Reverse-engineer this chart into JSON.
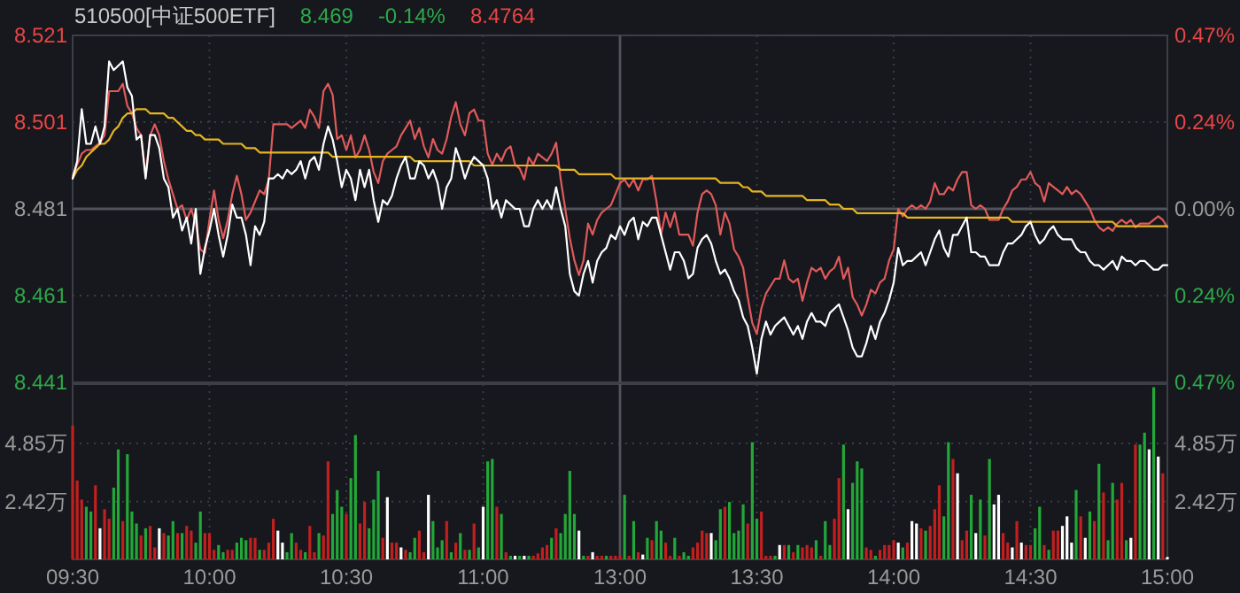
{
  "chart_data": [
    {
      "type": "line",
      "title": "510500[中证500ETF]",
      "annotations": [
        "8.469",
        "-0.14%",
        "8.4764"
      ],
      "categories": [
        null,
        null,
        null,
        null,
        null,
        null,
        null,
        null,
        null,
        null,
        null,
        null,
        null,
        null,
        null,
        null,
        null,
        null,
        null,
        null,
        null,
        null,
        null,
        null,
        null,
        null,
        null,
        null,
        null,
        null,
        null,
        null,
        null,
        null,
        null,
        null,
        null,
        null,
        null,
        null,
        null,
        null,
        null,
        null,
        null,
        null,
        null,
        null,
        null,
        null,
        null,
        null,
        null,
        null,
        null,
        null,
        null,
        null,
        null,
        null,
        null,
        null,
        null,
        null,
        null,
        null,
        null,
        null,
        null,
        null,
        null,
        null,
        null,
        null,
        null,
        null,
        null,
        null,
        null,
        null,
        null,
        null,
        null,
        null,
        null,
        null,
        null,
        null,
        null,
        null,
        null,
        null,
        null,
        null,
        null,
        null,
        null,
        null,
        null,
        null,
        null,
        null,
        null,
        null,
        null,
        null,
        null,
        null,
        null,
        null,
        null,
        null,
        null,
        null,
        null,
        null,
        null,
        null,
        null,
        null,
        null,
        null,
        null,
        null,
        null,
        null,
        null,
        null,
        null,
        null,
        null,
        null,
        null,
        null,
        null,
        null,
        null,
        null,
        null,
        null,
        null,
        null,
        null,
        null,
        null,
        null,
        null,
        null,
        null,
        null,
        null,
        null,
        null,
        null,
        null,
        null,
        null,
        null,
        null,
        null,
        null,
        null,
        null,
        null,
        null,
        null,
        null,
        null,
        null,
        null,
        null,
        null,
        null,
        null,
        null,
        null,
        null,
        null,
        null,
        null,
        null,
        null,
        null,
        null,
        null,
        null,
        null,
        null,
        null,
        null,
        null,
        null,
        null,
        null,
        null,
        null,
        null,
        null,
        null,
        null,
        null,
        null,
        null,
        null,
        null,
        null,
        null,
        null,
        null,
        null,
        null,
        null,
        null,
        null,
        null,
        null,
        null,
        null,
        null,
        null,
        null,
        null,
        null,
        null,
        null,
        null,
        null,
        null,
        null,
        null,
        null,
        null,
        null,
        null,
        null,
        null,
        null,
        null,
        null,
        null,
        null
      ],
      "ylim": [
        8.441,
        8.521
      ],
      "yticks": [
        8.441,
        8.461,
        8.481,
        8.501,
        8.521
      ],
      "y2lim": [
        -0.4716,
        0.4716
      ],
      "y2ticks": [
        {
          "value": -0.4716,
          "label": "0.47%"
        },
        {
          "value": -0.2358,
          "label": "0.24%"
        },
        {
          "value": 0,
          "label": "0.00%"
        },
        {
          "value": 0.2358,
          "label": "0.24%"
        },
        {
          "value": 0.4716,
          "label": "0.47%"
        }
      ],
      "tick_labels": "y",
      "grid": true,
      "series": [
        {
          "color": "#e05a5a",
          "axis": "y2",
          "values": [
            0.09,
            0.12,
            0.15,
            0.16,
            0.16,
            0.17,
            0.18,
            0.2,
            0.32,
            0.32,
            0.32,
            0.34,
            0.28,
            0.26,
            0.22,
            0.2,
            0.09,
            0.2,
            0.23,
            0.2,
            0.13,
            0.08,
            0.04,
            0,
            0.01,
            -0.03,
            0,
            -0.04,
            -0.11,
            -0.12,
            -0.03,
            0.05,
            -0.03,
            -0.08,
            -0.03,
            0.04,
            0.09,
            0.04,
            -0.03,
            -0.01,
            0.02,
            0.05,
            0.04,
            0.08,
            0.23,
            0.23,
            0.23,
            0.23,
            0.22,
            0.23,
            0.24,
            0.22,
            0.27,
            0.25,
            0.22,
            0.32,
            0.34,
            0.31,
            0.19,
            0.2,
            0.16,
            0.2,
            0.14,
            0.16,
            0.2,
            0.16,
            0.1,
            0.07,
            0.13,
            0.15,
            0.16,
            0.17,
            0.2,
            0.22,
            0.24,
            0.19,
            0.22,
            0.17,
            0.14,
            0.19,
            0.16,
            0.15,
            0.19,
            0.25,
            0.29,
            0.23,
            0.2,
            0.26,
            0.27,
            0.24,
            0.24,
            0.15,
            0.12,
            0.15,
            0.13,
            0.16,
            0.17,
            0.12,
            0.11,
            0.08,
            0.14,
            0.12,
            0.15,
            0.14,
            0.13,
            0.15,
            0.18,
            0.08,
            0,
            -0.08,
            -0.14,
            -0.18,
            -0.14,
            -0.04,
            -0.07,
            -0.03,
            -0.01,
            0,
            0.01,
            0.04,
            0.07,
            0.08,
            0.06,
            0.08,
            0.05,
            0.08,
            0.08,
            0.09,
            0.02,
            -0.07,
            -0.01,
            -0.05,
            -0.01,
            -0.07,
            -0.07,
            -0.07,
            -0.1,
            -0.01,
            0.04,
            0.05,
            0.04,
            0.01,
            -0.07,
            -0.01,
            -0.04,
            -0.11,
            -0.13,
            -0.16,
            -0.24,
            -0.31,
            -0.34,
            -0.27,
            -0.23,
            -0.21,
            -0.19,
            -0.19,
            -0.14,
            -0.19,
            -0.2,
            -0.19,
            -0.25,
            -0.2,
            -0.16,
            -0.17,
            -0.16,
            -0.19,
            -0.17,
            -0.16,
            -0.13,
            -0.19,
            -0.16,
            -0.24,
            -0.26,
            -0.29,
            -0.26,
            -0.22,
            -0.23,
            -0.2,
            -0.19,
            -0.14,
            -0.11,
            0,
            -0.02,
            0,
            0.01,
            0,
            0.01,
            0,
            0.02,
            0.07,
            0.04,
            0.04,
            0.06,
            0.05,
            0.08,
            0.1,
            0.1,
            0.01,
            0,
            0.01,
            0,
            -0.03,
            -0.03,
            -0.03,
            0,
            0.02,
            0.05,
            0.06,
            0.08,
            0.08,
            0.1,
            0.07,
            0.06,
            0.02,
            0.07,
            0.06,
            0.05,
            0.04,
            0.06,
            0.04,
            0.05,
            0.04,
            0.02,
            0,
            -0.03,
            -0.05,
            -0.06,
            -0.05,
            -0.06,
            -0.04,
            -0.03,
            -0.04,
            -0.03,
            -0.05,
            -0.04,
            -0.04,
            -0.04,
            -0.03,
            -0.02,
            -0.03,
            -0.05
          ]
        },
        {
          "color": "#e6b422",
          "values": [
            8.488,
            8.49,
            8.491,
            8.493,
            8.494,
            8.495,
            8.496,
            8.496,
            8.497,
            8.499,
            8.5,
            8.502,
            8.503,
            8.503,
            8.504,
            8.504,
            8.504,
            8.503,
            8.503,
            8.503,
            8.503,
            8.502,
            8.502,
            8.501,
            8.5,
            8.499,
            8.499,
            8.498,
            8.498,
            8.497,
            8.497,
            8.497,
            8.497,
            8.496,
            8.496,
            8.496,
            8.496,
            8.496,
            8.495,
            8.495,
            8.495,
            8.494,
            8.494,
            8.494,
            8.494,
            8.494,
            8.494,
            8.494,
            8.494,
            8.494,
            8.494,
            8.494,
            8.494,
            8.494,
            8.494,
            8.494,
            8.494,
            8.493,
            8.493,
            8.493,
            8.493,
            8.493,
            8.493,
            8.493,
            8.493,
            8.493,
            8.493,
            8.493,
            8.493,
            8.493,
            8.493,
            8.493,
            8.493,
            8.493,
            8.493,
            8.492,
            8.492,
            8.492,
            8.492,
            8.492,
            8.492,
            8.492,
            8.492,
            8.492,
            8.492,
            8.492,
            8.492,
            8.492,
            8.491,
            8.491,
            8.491,
            8.491,
            8.491,
            8.491,
            8.491,
            8.491,
            8.491,
            8.491,
            8.491,
            8.491,
            8.491,
            8.491,
            8.491,
            8.491,
            8.491,
            8.491,
            8.491,
            8.49,
            8.49,
            8.49,
            8.49,
            8.489,
            8.489,
            8.489,
            8.489,
            8.489,
            8.489,
            8.489,
            8.489,
            8.488,
            8.488,
            8.488,
            8.488,
            8.488,
            8.488,
            8.488,
            8.488,
            8.488,
            8.488,
            8.488,
            8.488,
            8.488,
            8.488,
            8.488,
            8.488,
            8.488,
            8.488,
            8.488,
            8.488,
            8.488,
            8.488,
            8.488,
            8.487,
            8.487,
            8.487,
            8.487,
            8.487,
            8.486,
            8.486,
            8.485,
            8.485,
            8.485,
            8.484,
            8.484,
            8.484,
            8.484,
            8.484,
            8.484,
            8.484,
            8.484,
            8.484,
            8.483,
            8.483,
            8.483,
            8.483,
            8.483,
            8.482,
            8.482,
            8.482,
            8.481,
            8.481,
            8.481,
            8.48,
            8.48,
            8.48,
            8.48,
            8.48,
            8.48,
            8.48,
            8.48,
            8.48,
            8.48,
            8.48,
            8.479,
            8.479,
            8.479,
            8.479,
            8.479,
            8.479,
            8.479,
            8.479,
            8.479,
            8.479,
            8.479,
            8.479,
            8.479,
            8.479,
            8.479,
            8.479,
            8.479,
            8.479,
            8.479,
            8.479,
            8.479,
            8.479,
            8.479,
            8.478,
            8.478,
            8.478,
            8.478,
            8.478,
            8.478,
            8.478,
            8.478,
            8.478,
            8.478,
            8.478,
            8.478,
            8.478,
            8.478,
            8.478,
            8.478,
            8.478,
            8.478,
            8.478,
            8.478,
            8.478,
            8.478,
            8.478,
            8.477,
            8.477,
            8.477,
            8.477,
            8.477,
            8.477,
            8.477,
            8.477,
            8.477,
            8.477,
            8.477,
            8.477
          ]
        },
        {
          "color": "#ffffff",
          "values": [
            8.488,
            8.492,
            8.504,
            8.496,
            8.496,
            8.5,
            8.496,
            8.5,
            8.515,
            8.513,
            8.514,
            8.515,
            8.509,
            8.507,
            8.497,
            8.498,
            8.488,
            8.498,
            8.498,
            8.495,
            8.488,
            8.486,
            8.479,
            8.481,
            8.476,
            8.479,
            8.473,
            8.481,
            8.466,
            8.472,
            8.476,
            8.481,
            8.475,
            8.47,
            8.475,
            8.482,
            8.479,
            8.479,
            8.475,
            8.468,
            8.477,
            8.475,
            8.478,
            8.488,
            8.488,
            8.489,
            8.488,
            8.49,
            8.489,
            8.49,
            8.492,
            8.488,
            8.492,
            8.493,
            8.49,
            8.496,
            8.5,
            8.497,
            8.492,
            8.486,
            8.49,
            8.488,
            8.483,
            8.49,
            8.486,
            8.49,
            8.483,
            8.478,
            8.483,
            8.482,
            8.484,
            8.488,
            8.491,
            8.493,
            8.488,
            8.488,
            8.492,
            8.491,
            8.488,
            8.49,
            8.487,
            8.481,
            8.486,
            8.488,
            8.495,
            8.492,
            8.488,
            8.491,
            8.493,
            8.492,
            8.491,
            8.488,
            8.481,
            8.483,
            8.479,
            8.483,
            8.482,
            8.481,
            8.481,
            8.477,
            8.477,
            8.481,
            8.483,
            8.481,
            8.483,
            8.481,
            8.486,
            8.481,
            8.477,
            8.466,
            8.462,
            8.461,
            8.466,
            8.469,
            8.464,
            8.469,
            8.471,
            8.472,
            8.475,
            8.474,
            8.477,
            8.475,
            8.478,
            8.479,
            8.474,
            8.478,
            8.477,
            8.479,
            8.479,
            8.475,
            8.471,
            8.467,
            8.471,
            8.471,
            8.469,
            8.465,
            8.466,
            8.472,
            8.474,
            8.475,
            8.473,
            8.469,
            8.466,
            8.467,
            8.465,
            8.462,
            8.46,
            8.456,
            8.454,
            8.449,
            8.443,
            8.451,
            8.455,
            8.452,
            8.454,
            8.455,
            8.456,
            8.454,
            8.452,
            8.454,
            8.451,
            8.455,
            8.457,
            8.455,
            8.455,
            8.454,
            8.457,
            8.458,
            8.459,
            8.456,
            8.453,
            8.449,
            8.447,
            8.447,
            8.45,
            8.454,
            8.451,
            8.455,
            8.457,
            8.46,
            8.464,
            8.472,
            8.468,
            8.469,
            8.469,
            8.47,
            8.471,
            8.468,
            8.471,
            8.474,
            8.476,
            8.472,
            8.47,
            8.475,
            8.475,
            8.477,
            8.479,
            8.471,
            8.471,
            8.47,
            8.47,
            8.468,
            8.468,
            8.468,
            8.471,
            8.473,
            8.473,
            8.474,
            8.475,
            8.477,
            8.478,
            8.475,
            8.473,
            8.474,
            8.476,
            8.477,
            8.475,
            8.474,
            8.474,
            8.474,
            8.472,
            8.471,
            8.471,
            8.469,
            8.468,
            8.468,
            8.467,
            8.468,
            8.469,
            8.467,
            8.47,
            8.469,
            8.469,
            8.468,
            8.469,
            8.469,
            8.468,
            8.467,
            8.467,
            8.468,
            8.468
          ]
        }
      ]
    },
    {
      "type": "bar",
      "categories": [
        "09:30",
        null,
        null,
        null,
        null,
        null,
        null,
        null,
        null,
        null,
        null,
        null,
        null,
        null,
        null,
        null,
        null,
        null,
        null,
        null,
        null,
        null,
        null,
        null,
        null,
        null,
        null,
        null,
        null,
        null,
        "10:00",
        null,
        null,
        null,
        null,
        null,
        null,
        null,
        null,
        null,
        null,
        null,
        null,
        null,
        null,
        null,
        null,
        null,
        null,
        null,
        null,
        null,
        null,
        null,
        null,
        null,
        null,
        null,
        null,
        null,
        "10:30",
        null,
        null,
        null,
        null,
        null,
        null,
        null,
        null,
        null,
        null,
        null,
        null,
        null,
        null,
        null,
        null,
        null,
        null,
        null,
        null,
        null,
        null,
        null,
        null,
        null,
        null,
        null,
        null,
        null,
        "11:00",
        null,
        null,
        null,
        null,
        null,
        null,
        null,
        null,
        null,
        null,
        null,
        null,
        null,
        null,
        null,
        null,
        null,
        null,
        null,
        null,
        null,
        null,
        null,
        null,
        null,
        null,
        null,
        null,
        null,
        "13:00",
        null,
        null,
        null,
        null,
        null,
        null,
        null,
        null,
        null,
        null,
        null,
        null,
        null,
        null,
        null,
        null,
        null,
        null,
        null,
        null,
        null,
        null,
        null,
        null,
        null,
        null,
        null,
        null,
        null,
        "13:30",
        null,
        null,
        null,
        null,
        null,
        null,
        null,
        null,
        null,
        null,
        null,
        null,
        null,
        null,
        null,
        null,
        null,
        null,
        null,
        null,
        null,
        null,
        null,
        null,
        null,
        null,
        null,
        null,
        null,
        "14:00",
        null,
        null,
        null,
        null,
        null,
        null,
        null,
        null,
        null,
        null,
        null,
        null,
        null,
        null,
        null,
        null,
        null,
        null,
        null,
        null,
        null,
        null,
        null,
        null,
        null,
        null,
        null,
        null,
        null,
        "14:30",
        null,
        null,
        null,
        null,
        null,
        null,
        null,
        null,
        null,
        null,
        null,
        null,
        null,
        null,
        null,
        null,
        null,
        null,
        null,
        null,
        null,
        null,
        null,
        null,
        null,
        null,
        null,
        null,
        null,
        "15:00"
      ],
      "ylim": [
        0,
        7.33
      ],
      "yticks": [
        {
          "value": 2.42,
          "label": "2.42万"
        },
        {
          "value": 4.85,
          "label": "4.85万"
        }
      ],
      "y2lim": [
        0,
        7.33
      ],
      "y2ticks": [
        {
          "value": 2.42,
          "label": "2.42万"
        },
        {
          "value": 4.85,
          "label": "4.85万"
        }
      ],
      "grid": true,
      "values": [
        5.6,
        3.3,
        2.5,
        2.2,
        2.0,
        3.1,
        1.3,
        2.1,
        1.7,
        3.0,
        4.6,
        1.6,
        4.4,
        2.0,
        1.5,
        1.0,
        1.3,
        1.4,
        0.5,
        1.3,
        1.1,
        1.0,
        1.6,
        1.1,
        1.1,
        1.4,
        1.2,
        0.7,
        2.0,
        1.1,
        1.1,
        0.4,
        0.6,
        0.3,
        0.4,
        0.4,
        0.7,
        0.9,
        0.8,
        0.9,
        0.9,
        0.4,
        0.4,
        0.7,
        1.7,
        1.2,
        0.7,
        0.3,
        1.1,
        0.7,
        0.4,
        0.3,
        1.4,
        0.3,
        1.1,
        1.0,
        4.1,
        1.9,
        2.9,
        2.2,
        1.9,
        3.4,
        5.2,
        1.5,
        2.4,
        1.3,
        2.5,
        3.7,
        0.9,
        2.6,
        0.7,
        0.7,
        0.5,
        0.4,
        0.3,
        0.9,
        1.2,
        0.3,
        2.7,
        1.6,
        0.5,
        0.8,
        1.6,
        0.3,
        0.7,
        1.1,
        0.4,
        0.4,
        1.5,
        0.5,
        2.2,
        4.1,
        4.2,
        2.2,
        1.9,
        0.3,
        0.15,
        0.15,
        0.15,
        0.15,
        0.15,
        0.15,
        0.25,
        0.5,
        0.6,
        0.9,
        1.3,
        1.1,
        1.9,
        3.7,
        1.9,
        1.2,
        0.15,
        0.15,
        0.3,
        0.15,
        0.15,
        0.15,
        0.15,
        0.15,
        0.15,
        2.7,
        0.15,
        1.6,
        0.3,
        0.2,
        0.9,
        0.8,
        1.6,
        1.2,
        0.7,
        0.15,
        0.9,
        0.15,
        0.3,
        0.15,
        0.5,
        0.7,
        1.2,
        1.1,
        1.1,
        0.8,
        2.1,
        2.2,
        2.4,
        1.1,
        1.2,
        2.3,
        1.5,
        4.9,
        1.7,
        2.0,
        0.15,
        0.15,
        0.15,
        0.6,
        0.6,
        0.6,
        0.3,
        0.6,
        0.5,
        0.6,
        0.5,
        0.8,
        0.15,
        1.6,
        0.6,
        1.7,
        3.4,
        4.8,
        2.1,
        3.2,
        4.1,
        3.8,
        0.5,
        0.4,
        0.15,
        0.4,
        0.6,
        0.6,
        0.8,
        0.7,
        0.5,
        0.7,
        1.6,
        1.5,
        1.3,
        1.2,
        1.4,
        2.1,
        3.1,
        1.8,
        4.9,
        4.2,
        3.6,
        0.8,
        1.2,
        2.7,
        1.1,
        2.5,
        1.0,
        4.2,
        2.3,
        2.7,
        1.1,
        0.7,
        0.5,
        1.6,
        0.7,
        0.6,
        0.6,
        1.3,
        2.2,
        0.6,
        0.4,
        1.2,
        1.2,
        1.4,
        1.8,
        0.7,
        2.9,
        1.8,
        0.9,
        2.0,
        1.6,
        4.0,
        2.8,
        0.8,
        3.2,
        2.5,
        3.2,
        0.8,
        0.9,
        4.8,
        4.8,
        5.3,
        4.6,
        7.2,
        4.3,
        3.6,
        0.1
      ],
      "colors": [
        "#c21f1f",
        "#c21f1f",
        "#c21f1f",
        "#22a838",
        "#22a838",
        "#c21f1f",
        "#ffffff",
        "#c21f1f",
        "#c21f1f",
        "#22a838",
        "#22a838",
        "#c21f1f",
        "#22a838",
        "#22a838",
        "#22a838",
        "#c21f1f",
        "#22a838",
        "#c21f1f",
        "#c21f1f",
        "#ffffff",
        "#c21f1f",
        "#22a838",
        "#22a838",
        "#c21f1f",
        "#22a838",
        "#c21f1f",
        "#c21f1f",
        "#22a838",
        "#22a838",
        "#c21f1f",
        "#c21f1f",
        "#c21f1f",
        "#22a838",
        "#22a838",
        "#c21f1f",
        "#c21f1f",
        "#22a838",
        "#22a838",
        "#22a838",
        "#c21f1f",
        "#c21f1f",
        "#22a838",
        "#c21f1f",
        "#c21f1f",
        "#c21f1f",
        "#ffffff",
        "#ffffff",
        "#22a838",
        "#22a838",
        "#c21f1f",
        "#c21f1f",
        "#22a838",
        "#c21f1f",
        "#c21f1f",
        "#22a838",
        "#c21f1f",
        "#c21f1f",
        "#22a838",
        "#22a838",
        "#22a838",
        "#c21f1f",
        "#22a838",
        "#22a838",
        "#c21f1f",
        "#c21f1f",
        "#22a838",
        "#22a838",
        "#22a838",
        "#c21f1f",
        "#ffffff",
        "#c21f1f",
        "#c21f1f",
        "#ffffff",
        "#c21f1f",
        "#22a838",
        "#22a838",
        "#c21f1f",
        "#c21f1f",
        "#ffffff",
        "#22a838",
        "#22a838",
        "#22a838",
        "#c21f1f",
        "#22a838",
        "#c21f1f",
        "#22a838",
        "#c21f1f",
        "#22a838",
        "#c21f1f",
        "#22a838",
        "#ffffff",
        "#22a838",
        "#22a838",
        "#c21f1f",
        "#22a838",
        "#c21f1f",
        "#22a838",
        "#ffffff",
        "#22a838",
        "#ffffff",
        "#22a838",
        "#c21f1f",
        "#c21f1f",
        "#c21f1f",
        "#c21f1f",
        "#22a838",
        "#c21f1f",
        "#22a838",
        "#22a838",
        "#22a838",
        "#22a838",
        "#ffffff",
        "#22a838",
        "#c21f1f",
        "#ffffff",
        "#c21f1f",
        "#c21f1f",
        "#22a838",
        "#c21f1f",
        "#c21f1f",
        "#c21f1f",
        "#22a838",
        "#c21f1f",
        "#22a838",
        "#c21f1f",
        "#ffffff",
        "#22a838",
        "#c21f1f",
        "#22a838",
        "#22a838",
        "#c21f1f",
        "#c21f1f",
        "#22a838",
        "#c21f1f",
        "#22a838",
        "#22a838",
        "#c21f1f",
        "#c21f1f",
        "#c21f1f",
        "#c21f1f",
        "#ffffff",
        "#22a838",
        "#22a838",
        "#c21f1f",
        "#22a838",
        "#22a838",
        "#22a838",
        "#22a838",
        "#c21f1f",
        "#22a838",
        "#22a838",
        "#c21f1f",
        "#c21f1f",
        "#c21f1f",
        "#22a838",
        "#ffffff",
        "#c21f1f",
        "#22a838",
        "#c21f1f",
        "#22a838",
        "#c21f1f",
        "#c21f1f",
        "#c21f1f",
        "#22a838",
        "#c21f1f",
        "#22a838",
        "#22a838",
        "#c21f1f",
        "#c21f1f",
        "#22a838",
        "#ffffff",
        "#22a838",
        "#22a838",
        "#22a838",
        "#c21f1f",
        "#c21f1f",
        "#22a838",
        "#c21f1f",
        "#c21f1f",
        "#c21f1f",
        "#c21f1f",
        "#ffffff",
        "#22a838",
        "#c21f1f",
        "#ffffff",
        "#ffffff",
        "#c21f1f",
        "#22a838",
        "#c21f1f",
        "#c21f1f",
        "#c21f1f",
        "#22a838",
        "#22a838",
        "#c21f1f",
        "#ffffff",
        "#c21f1f",
        "#c21f1f",
        "#22a838",
        "#ffffff",
        "#22a838",
        "#c21f1f",
        "#22a838",
        "#ffffff",
        "#ffffff",
        "#c21f1f",
        "#c21f1f",
        "#ffffff",
        "#c21f1f",
        "#ffffff",
        "#c21f1f",
        "#c21f1f",
        "#22a838",
        "#22a838",
        "#c21f1f",
        "#22a838",
        "#c21f1f",
        "#c21f1f",
        "#ffffff",
        "#ffffff",
        "#ffffff",
        "#22a838",
        "#c21f1f",
        "#ffffff",
        "#22a838",
        "#c21f1f",
        "#22a838",
        "#c21f1f",
        "#22a838",
        "#22a838",
        "#c21f1f",
        "#c21f1f",
        "#22a838",
        "#ffffff",
        "#c21f1f",
        "#22a838",
        "#22a838",
        "#ffffff",
        "#22a838",
        "#ffffff",
        "#c21f1f",
        "#ffffff"
      ]
    }
  ]
}
